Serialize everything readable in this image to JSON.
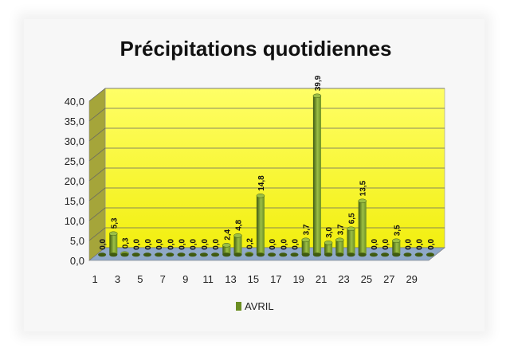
{
  "chart_data": {
    "type": "bar",
    "title": "Précipitations quotidiennes",
    "xlabel": "",
    "ylabel": "",
    "categories": [
      "1",
      "2",
      "3",
      "4",
      "5",
      "6",
      "7",
      "8",
      "9",
      "10",
      "11",
      "12",
      "13",
      "14",
      "15",
      "16",
      "17",
      "18",
      "19",
      "20",
      "21",
      "22",
      "23",
      "24",
      "25",
      "26",
      "27",
      "28",
      "29",
      "30"
    ],
    "series": [
      {
        "name": "AVRIL",
        "values": [
          0.0,
          5.3,
          0.3,
          0.0,
          0.0,
          0.0,
          0.0,
          0.0,
          0.0,
          0.0,
          0.0,
          2.4,
          4.8,
          0.2,
          14.8,
          0.0,
          0.0,
          0.0,
          3.7,
          39.9,
          3.0,
          3.7,
          6.5,
          13.5,
          0.0,
          0.0,
          3.5,
          0.0,
          0.0,
          0.0
        ],
        "labels": [
          "0,0",
          "5,3",
          "0,3",
          "0,0",
          "0,0",
          "0,0",
          "0,0",
          "0,0",
          "0,0",
          "0,0",
          "0,0",
          "2,4",
          "4,8",
          "0,2",
          "14,8",
          "0,0",
          "0,0",
          "0,0",
          "3,7",
          "39,9",
          "3,0",
          "3,7",
          "6,5",
          "13,5",
          "0,0",
          "0,0",
          "3,5",
          "0,0",
          "0,0",
          "0,0"
        ]
      }
    ],
    "x_tick_labels": [
      "1",
      "3",
      "5",
      "7",
      "9",
      "11",
      "13",
      "15",
      "17",
      "19",
      "21",
      "23",
      "25",
      "27",
      "29"
    ],
    "y_tick_labels": [
      "0,0",
      "5,0",
      "10,0",
      "15,0",
      "20,0",
      "25,0",
      "30,0",
      "35,0",
      "40,0"
    ],
    "ylim": [
      0,
      40
    ],
    "y_step": 5,
    "grid": true,
    "legend_position": "bottom",
    "colors": {
      "bar": "#6b8e23",
      "bar_dark": "#3f5a10",
      "bar_light": "#9cbf45",
      "wall_top": "#ffff66",
      "wall_bottom": "#f2ef10",
      "side_wall": "#a5a53a",
      "floor": "#8fa8c8"
    }
  }
}
